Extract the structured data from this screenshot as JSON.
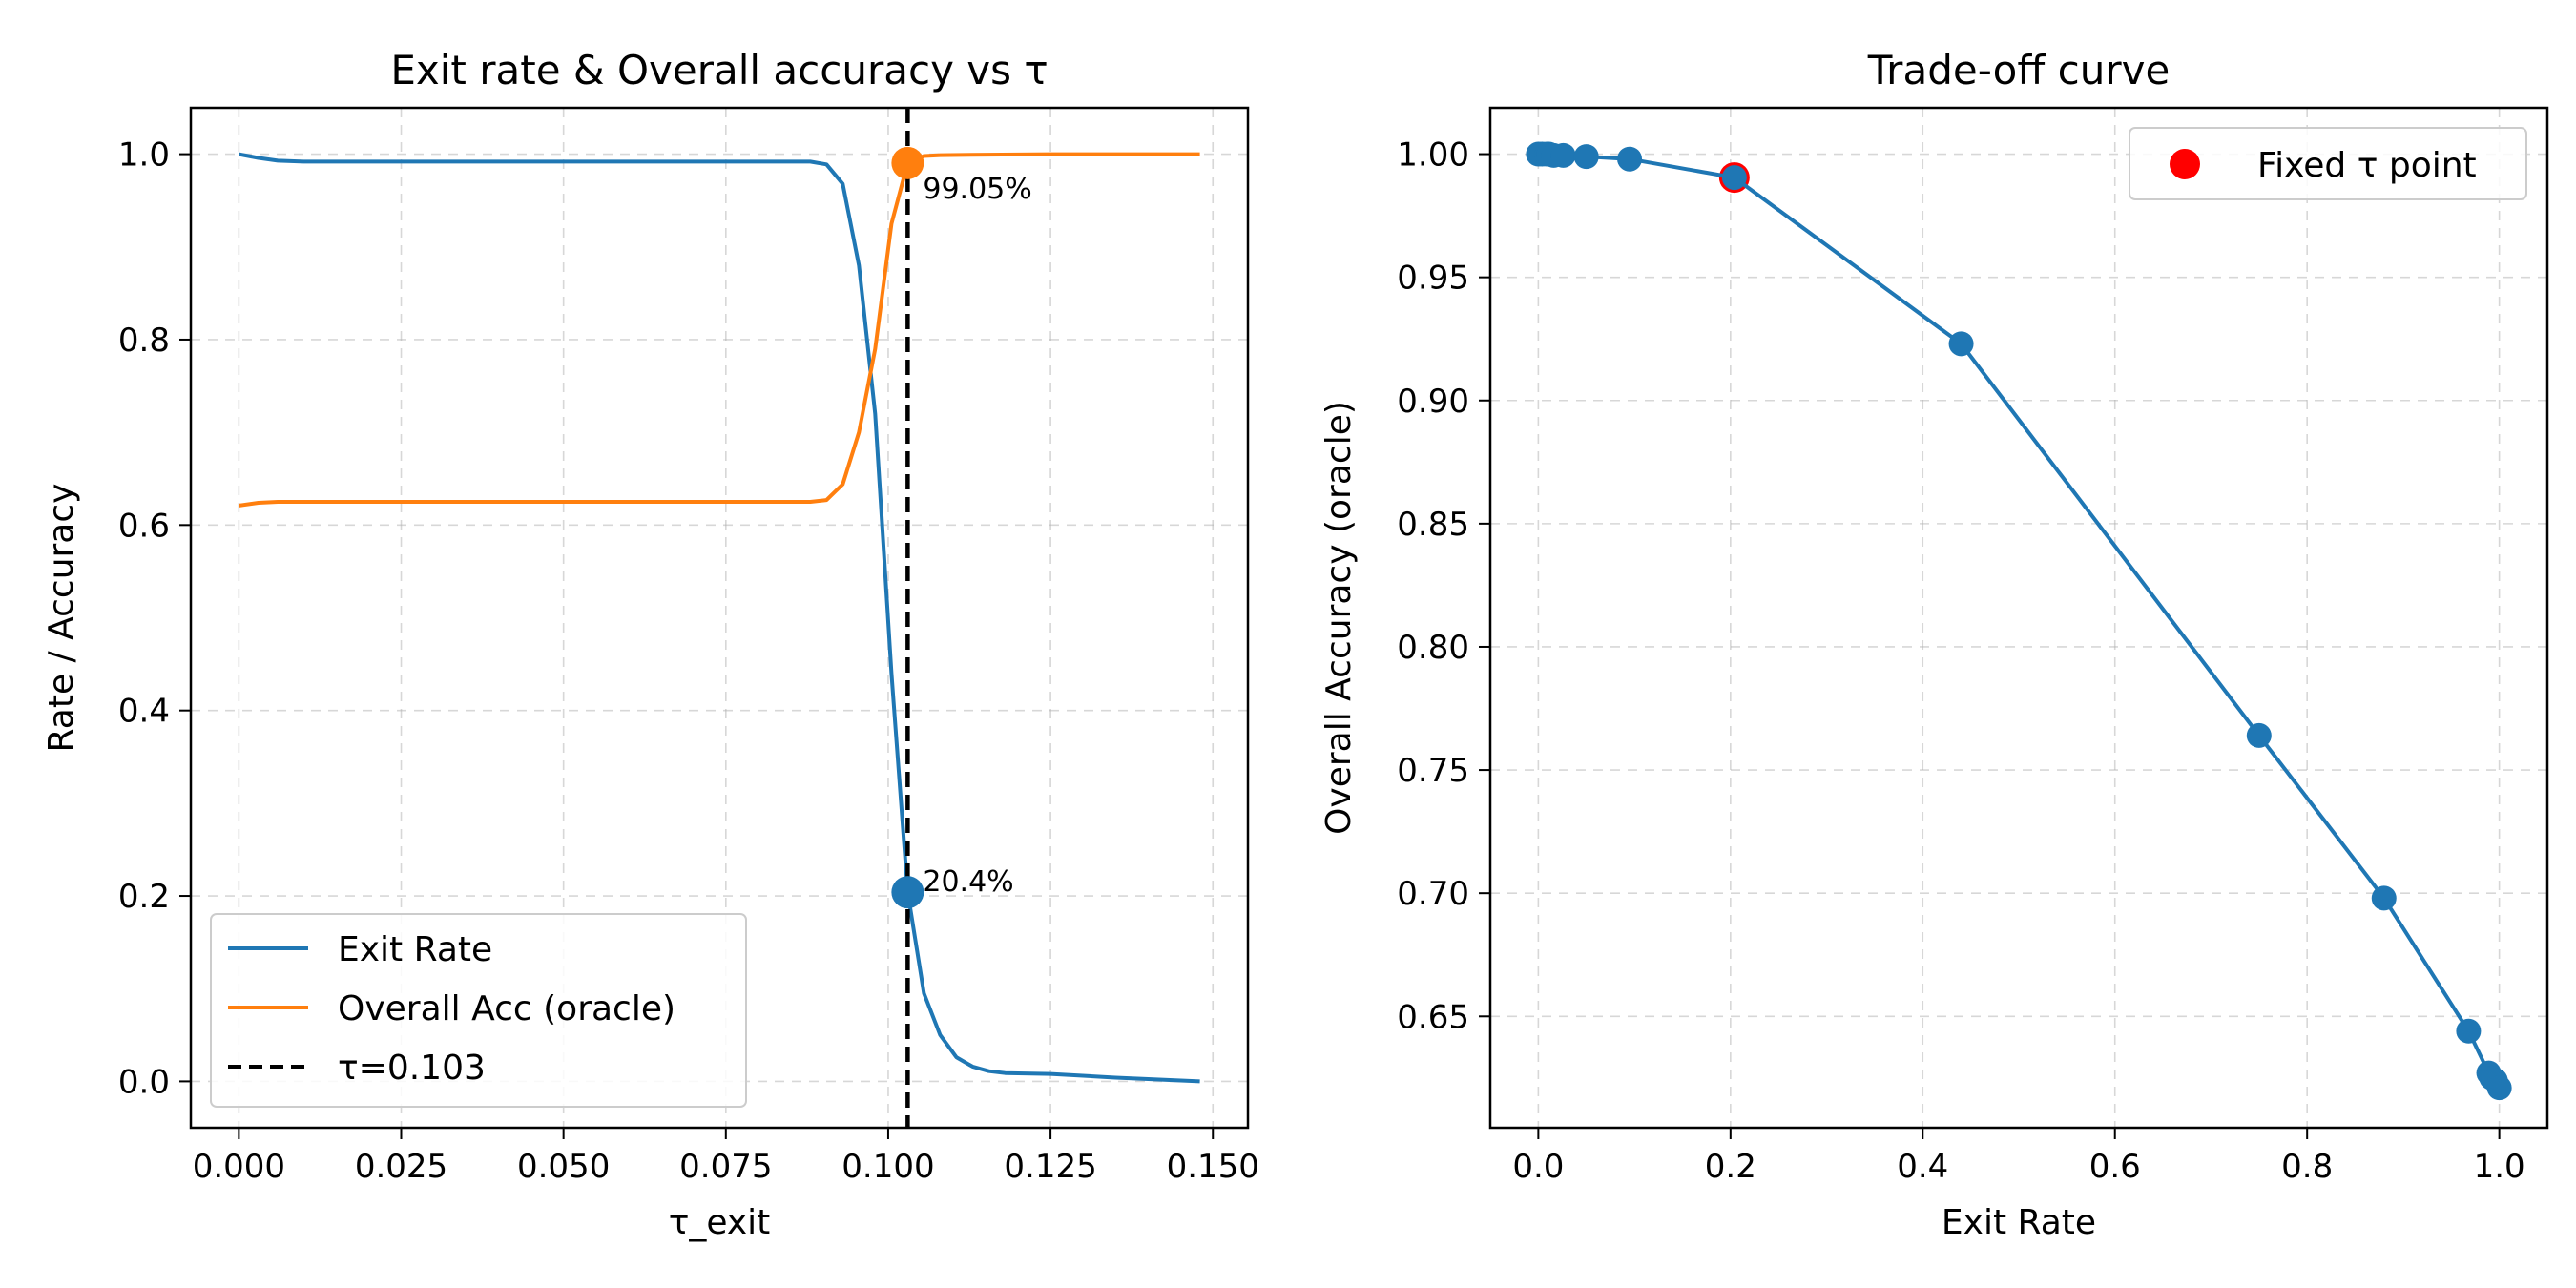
{
  "chart_data": [
    {
      "type": "line",
      "title": "Exit rate & Overall accuracy vs τ",
      "xlabel": "τ_exit",
      "ylabel": "Rate / Accuracy",
      "xlim": [
        -0.0074,
        0.1554
      ],
      "ylim": [
        -0.05,
        1.05
      ],
      "xticks": [
        0.0,
        0.025,
        0.05,
        0.075,
        0.1,
        0.125,
        0.15
      ],
      "xtick_labels": [
        "0.000",
        "0.025",
        "0.050",
        "0.075",
        "0.100",
        "0.125",
        "0.150"
      ],
      "yticks": [
        0.0,
        0.2,
        0.4,
        0.6,
        0.8,
        1.0
      ],
      "ytick_labels": [
        "0.0",
        "0.2",
        "0.4",
        "0.6",
        "0.8",
        "1.0"
      ],
      "grid": true,
      "legend_position": "lower-left",
      "series": [
        {
          "name": "Exit Rate",
          "color": "#1f77b4",
          "style": "solid",
          "x": [
            0.0,
            0.003,
            0.006,
            0.01,
            0.02,
            0.04,
            0.06,
            0.08,
            0.088,
            0.0905,
            0.093,
            0.0955,
            0.098,
            0.1005,
            0.103,
            0.1055,
            0.108,
            0.1105,
            0.113,
            0.1155,
            0.118,
            0.125,
            0.135,
            0.148
          ],
          "y": [
            1.0,
            0.996,
            0.993,
            0.992,
            0.992,
            0.992,
            0.992,
            0.992,
            0.992,
            0.989,
            0.968,
            0.88,
            0.72,
            0.44,
            0.204,
            0.095,
            0.05,
            0.026,
            0.016,
            0.011,
            0.009,
            0.008,
            0.004,
            0.0
          ]
        },
        {
          "name": "Overall Acc (oracle)",
          "color": "#ff7f0e",
          "style": "solid",
          "x": [
            0.0,
            0.003,
            0.006,
            0.01,
            0.02,
            0.04,
            0.06,
            0.08,
            0.088,
            0.0905,
            0.093,
            0.0955,
            0.098,
            0.1005,
            0.103,
            0.1055,
            0.108,
            0.115,
            0.125,
            0.148
          ],
          "y": [
            0.621,
            0.624,
            0.625,
            0.625,
            0.625,
            0.625,
            0.625,
            0.625,
            0.625,
            0.627,
            0.644,
            0.7,
            0.79,
            0.925,
            0.9905,
            0.998,
            0.999,
            0.9995,
            1.0,
            1.0
          ]
        }
      ],
      "vline": {
        "name": "τ=0.103",
        "x": 0.103,
        "color": "#000000",
        "style": "dashed"
      },
      "markers": [
        {
          "x": 0.103,
          "y": 0.9905,
          "color": "#ff7f0e",
          "label": "99.05%"
        },
        {
          "x": 0.103,
          "y": 0.204,
          "color": "#1f77b4",
          "label": "20.4%"
        }
      ]
    },
    {
      "type": "line",
      "title": "Trade-off curve",
      "xlabel": "Exit Rate",
      "ylabel": "Overall Accuracy (oracle)",
      "xlim": [
        -0.05,
        1.05
      ],
      "ylim": [
        0.6048,
        1.0188
      ],
      "xticks": [
        0.0,
        0.2,
        0.4,
        0.6,
        0.8,
        1.0
      ],
      "xtick_labels": [
        "0.0",
        "0.2",
        "0.4",
        "0.6",
        "0.8",
        "1.0"
      ],
      "yticks": [
        0.65,
        0.7,
        0.75,
        0.8,
        0.85,
        0.9,
        0.95,
        1.0
      ],
      "ytick_labels": [
        "0.65",
        "0.70",
        "0.75",
        "0.80",
        "0.85",
        "0.90",
        "0.95",
        "1.00"
      ],
      "grid": true,
      "legend_position": "upper-right",
      "series": [
        {
          "name": "",
          "color": "#1f77b4",
          "style": "solid-with-markers",
          "x": [
            0.0,
            0.004,
            0.009,
            0.011,
            0.016,
            0.026,
            0.05,
            0.095,
            0.204,
            0.44,
            0.75,
            0.88,
            0.968,
            0.989,
            0.992,
            0.996,
            1.0
          ],
          "y": [
            1.0,
            1.0,
            1.0,
            1.0,
            0.9995,
            0.9995,
            0.999,
            0.998,
            0.9905,
            0.923,
            0.764,
            0.698,
            0.644,
            0.627,
            0.625,
            0.624,
            0.621
          ]
        }
      ],
      "highlight": {
        "name": "Fixed τ point",
        "x": 0.204,
        "y": 0.9905,
        "color": "#ff0000"
      }
    }
  ]
}
